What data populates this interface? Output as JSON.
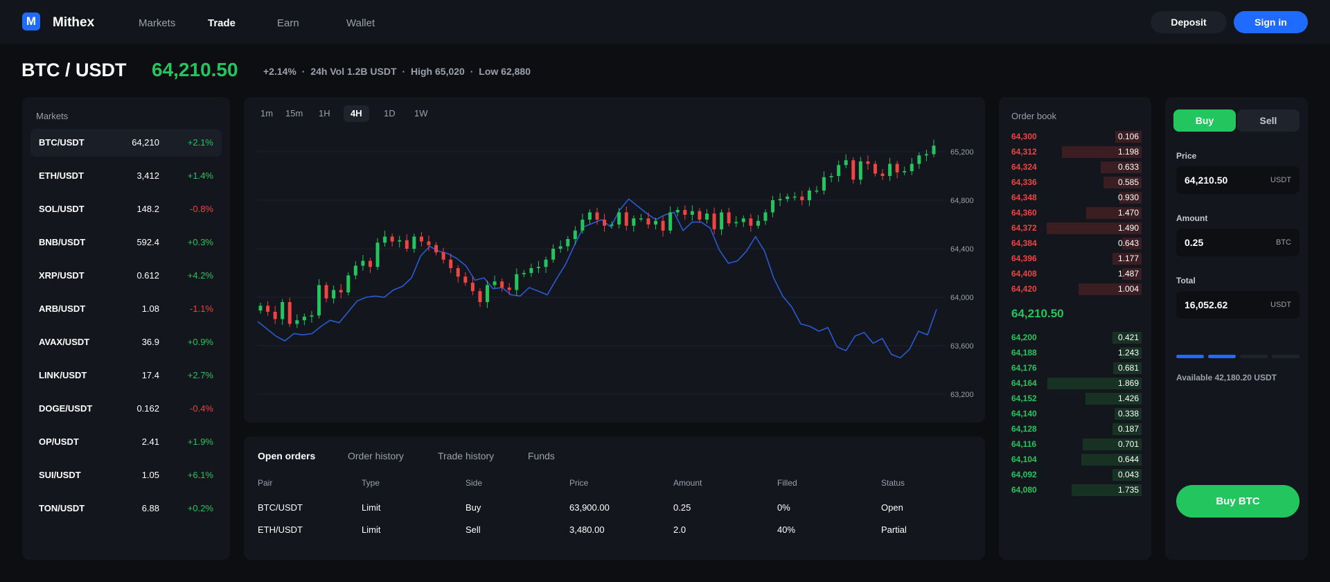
{
  "app": {
    "logo_letter": "M",
    "brand": "Mithex"
  },
  "nav": [
    {
      "label": "Markets",
      "active": false
    },
    {
      "label": "Trade",
      "active": true
    },
    {
      "label": "Earn",
      "active": false
    },
    {
      "label": "Wallet",
      "active": false
    }
  ],
  "header_buttons": {
    "deposit": "Deposit",
    "signin": "Sign in"
  },
  "ticker": {
    "pair": "BTC / USDT",
    "price": "64,210.50",
    "change": "+2.14%",
    "volume": "24h Vol 1.2B USDT",
    "high": "High 65,020",
    "low": "Low 62,880",
    "sep": "·"
  },
  "markets": {
    "title": "Markets",
    "items": [
      {
        "pair": "BTC/USDT",
        "price": "64,210",
        "change": "+2.1%",
        "dir": "up",
        "selected": true
      },
      {
        "pair": "ETH/USDT",
        "price": "3,412",
        "change": "+1.4%",
        "dir": "up"
      },
      {
        "pair": "SOL/USDT",
        "price": "148.2",
        "change": "-0.8%",
        "dir": "down"
      },
      {
        "pair": "BNB/USDT",
        "price": "592.4",
        "change": "+0.3%",
        "dir": "up"
      },
      {
        "pair": "XRP/USDT",
        "price": "0.612",
        "change": "+4.2%",
        "dir": "up"
      },
      {
        "pair": "ARB/USDT",
        "price": "1.08",
        "change": "-1.1%",
        "dir": "down"
      },
      {
        "pair": "AVAX/USDT",
        "price": "36.9",
        "change": "+0.9%",
        "dir": "up"
      },
      {
        "pair": "LINK/USDT",
        "price": "17.4",
        "change": "+2.7%",
        "dir": "up"
      },
      {
        "pair": "DOGE/USDT",
        "price": "0.162",
        "change": "-0.4%",
        "dir": "down"
      },
      {
        "pair": "OP/USDT",
        "price": "2.41",
        "change": "+1.9%",
        "dir": "up"
      },
      {
        "pair": "SUI/USDT",
        "price": "1.05",
        "change": "+6.1%",
        "dir": "up"
      },
      {
        "pair": "TON/USDT",
        "price": "6.88",
        "change": "+0.2%",
        "dir": "up"
      }
    ]
  },
  "timeframes": [
    {
      "label": "1m"
    },
    {
      "label": "15m"
    },
    {
      "label": "1H"
    },
    {
      "label": "4H",
      "active": true
    },
    {
      "label": "1D"
    },
    {
      "label": "1W"
    }
  ],
  "chart_data": {
    "type": "line",
    "ylim": [
      63000,
      65500
    ],
    "yticks": [
      63200,
      63600,
      64000,
      64400,
      64800,
      65200
    ],
    "ytick_labels": [
      "63,200",
      "63,600",
      "64,000",
      "64,400",
      "64,800",
      "65,200"
    ],
    "grid": true,
    "candles_close": [
      63930,
      63880,
      63820,
      63960,
      63780,
      63810,
      63840,
      63850,
      64100,
      63990,
      64060,
      64040,
      64180,
      64260,
      64300,
      64250,
      64450,
      64500,
      64460,
      64470,
      64400,
      64500,
      64460,
      64430,
      64370,
      64310,
      64240,
      64170,
      64120,
      64050,
      63960,
      64100,
      64130,
      64080,
      64060,
      64190,
      64200,
      64240,
      64250,
      64310,
      64400,
      64420,
      64480,
      64550,
      64640,
      64700,
      64640,
      64590,
      64600,
      64700,
      64590,
      64650,
      64650,
      64600,
      64630,
      64550,
      64700,
      64720,
      64680,
      64710,
      64640,
      64690,
      64560,
      64700,
      64610,
      64620,
      64650,
      64590,
      64630,
      64700,
      64800,
      64810,
      64830,
      64830,
      64800,
      64880,
      64880,
      64990,
      65000,
      65090,
      65130,
      64970,
      65120,
      65100,
      65020,
      65000,
      65100,
      65030,
      65040,
      65100,
      65170,
      65180,
      65250
    ],
    "line_series": [
      63800,
      63740,
      63680,
      63640,
      63700,
      63690,
      63700,
      63760,
      63810,
      63790,
      63880,
      63970,
      64000,
      64010,
      64000,
      64060,
      64090,
      64160,
      64340,
      64420,
      64380,
      64360,
      64320,
      64260,
      64140,
      64160,
      64070,
      64080,
      64020,
      64010,
      64080,
      64050,
      64020,
      64150,
      64270,
      64430,
      64580,
      64610,
      64640,
      64580,
      64720,
      64810,
      64750,
      64690,
      64640,
      64680,
      64700,
      64550,
      64620,
      64620,
      64570,
      64390,
      64280,
      64300,
      64380,
      64500,
      64380,
      64160,
      64010,
      63920,
      63780,
      63760,
      63720,
      63750,
      63590,
      63560,
      63680,
      63710,
      63620,
      63660,
      63530,
      63500,
      63570,
      63720,
      63690,
      63900
    ]
  },
  "orders": {
    "tabs": [
      {
        "label": "Open orders",
        "active": true
      },
      {
        "label": "Order history"
      },
      {
        "label": "Trade history"
      },
      {
        "label": "Funds"
      }
    ],
    "headers": [
      "Pair",
      "Type",
      "Side",
      "Price",
      "Amount",
      "Filled",
      "Status"
    ],
    "rows": [
      {
        "pair": "BTC/USDT",
        "type": "Limit",
        "side": "Buy",
        "side_dir": "up",
        "price": "63,900.00",
        "amount": "0.25",
        "filled": "0%",
        "status": "Open"
      },
      {
        "pair": "ETH/USDT",
        "type": "Limit",
        "side": "Sell",
        "side_dir": "down",
        "price": "3,480.00",
        "amount": "2.0",
        "filled": "40%",
        "status": "Partial"
      }
    ]
  },
  "orderbook": {
    "title": "Order book",
    "mid_price": "64,210.50",
    "asks": [
      {
        "price": "64,300",
        "qty": "0.106",
        "depth": 0.27
      },
      {
        "price": "64,312",
        "qty": "1.198",
        "depth": 0.82
      },
      {
        "price": "64,324",
        "qty": "0.633",
        "depth": 0.42
      },
      {
        "price": "64,336",
        "qty": "0.585",
        "depth": 0.39
      },
      {
        "price": "64,348",
        "qty": "0.930",
        "depth": 0.23
      },
      {
        "price": "64,360",
        "qty": "1.470",
        "depth": 0.57
      },
      {
        "price": "64,372",
        "qty": "1.490",
        "depth": 0.98
      },
      {
        "price": "64,384",
        "qty": "0.643",
        "depth": 0.2
      },
      {
        "price": "64,396",
        "qty": "1.177",
        "depth": 0.3
      },
      {
        "price": "64,408",
        "qty": "1.487",
        "depth": 0.2
      },
      {
        "price": "64,420",
        "qty": "1.004",
        "depth": 0.65
      }
    ],
    "bids": [
      {
        "price": "64,200",
        "qty": "0.421",
        "depth": 0.3
      },
      {
        "price": "64,188",
        "qty": "1.243",
        "depth": 0.22
      },
      {
        "price": "64,176",
        "qty": "0.681",
        "depth": 0.29
      },
      {
        "price": "64,164",
        "qty": "1.869",
        "depth": 0.97
      },
      {
        "price": "64,152",
        "qty": "1.426",
        "depth": 0.58
      },
      {
        "price": "64,140",
        "qty": "0.338",
        "depth": 0.28
      },
      {
        "price": "64,128",
        "qty": "0.187",
        "depth": 0.3
      },
      {
        "price": "64,116",
        "qty": "0.701",
        "depth": 0.61
      },
      {
        "price": "64,104",
        "qty": "0.644",
        "depth": 0.62
      },
      {
        "price": "64,092",
        "qty": "0.043",
        "depth": 0.3
      },
      {
        "price": "64,080",
        "qty": "1.735",
        "depth": 0.72
      }
    ]
  },
  "trade_form": {
    "buy_label": "Buy",
    "sell_label": "Sell",
    "price_label": "Price",
    "price_value": "64,210.50",
    "price_unit": "USDT",
    "amount_label": "Amount",
    "amount_value": "0.25",
    "amount_unit": "BTC",
    "total_label": "Total",
    "total_value": "16,052.62",
    "total_unit": "USDT",
    "slider_level": 0.5,
    "available": "Available 42,180.20 USDT",
    "submit_label": "Buy BTC"
  },
  "colors": {
    "up": "#22c55e",
    "down": "#ef4444",
    "accent": "#1f6bff",
    "line": "#2a5bd7"
  }
}
